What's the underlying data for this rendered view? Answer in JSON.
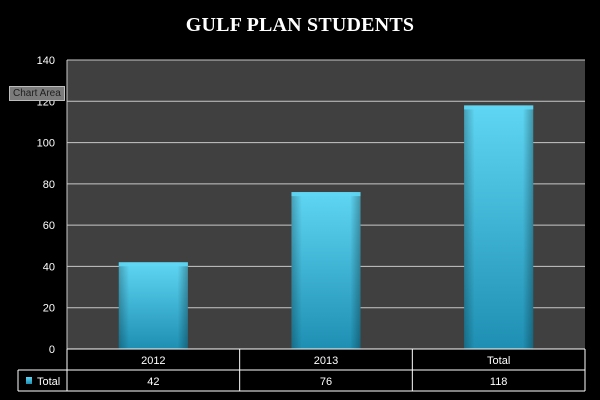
{
  "colors": {
    "background": "#000000",
    "plot_area": "#404040",
    "bar_light": "#5fd6f3",
    "bar_dark": "#1e8fb2",
    "grid": "#c8c8c8",
    "text": "#ffffff"
  },
  "tooltip": {
    "label": "Chart Area"
  },
  "chart_data": {
    "type": "bar",
    "title": "GULF PLAN STUDENTS",
    "categories": [
      "2012",
      "2013",
      "Total"
    ],
    "series": [
      {
        "name": "Total",
        "values": [
          42,
          76,
          118
        ]
      }
    ],
    "ylim": [
      0,
      140
    ],
    "yticks": [
      0,
      20,
      40,
      60,
      80,
      100,
      120,
      140
    ],
    "grid": true,
    "data_table": {
      "row_label": "Total",
      "values": [
        "42",
        "76",
        "118"
      ]
    }
  }
}
